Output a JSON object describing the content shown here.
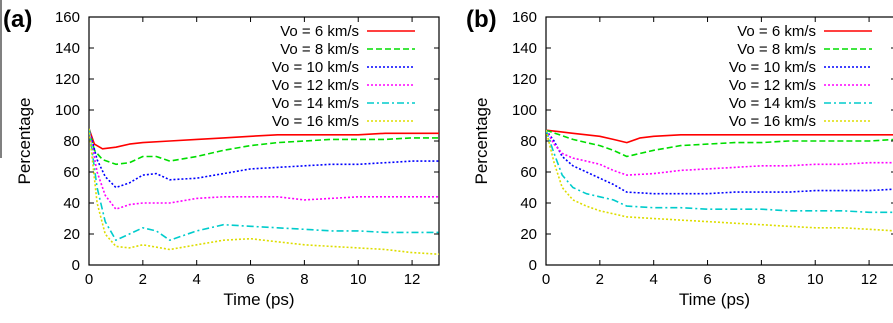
{
  "chart_data": [
    {
      "type": "line",
      "panel_label": "(a)",
      "xlabel": "Time (ps)",
      "ylabel": "Percentage",
      "xlim": [
        0,
        13
      ],
      "ylim": [
        0,
        160
      ],
      "xticks": [
        0,
        2,
        4,
        6,
        8,
        10,
        12
      ],
      "yticks": [
        0,
        20,
        40,
        60,
        80,
        100,
        120,
        140,
        160
      ],
      "grid": false,
      "legend_position": "top-right",
      "series": [
        {
          "name": "Vo = 6 km/s",
          "color": "#ff0000",
          "dash": "solid",
          "x": [
            0,
            0.2,
            0.5,
            1,
            1.5,
            2,
            3,
            4,
            5,
            6,
            7,
            8,
            9,
            10,
            11,
            12,
            13
          ],
          "y": [
            88,
            78,
            75,
            76,
            78,
            79,
            80,
            81,
            82,
            83,
            84,
            84,
            84,
            84,
            85,
            85,
            85
          ]
        },
        {
          "name": "Vo = 8 km/s",
          "color": "#00dd00",
          "dash": "dashed",
          "x": [
            0,
            0.2,
            0.5,
            1,
            1.5,
            2,
            2.5,
            3,
            4,
            5,
            6,
            7,
            8,
            9,
            10,
            11,
            12,
            13
          ],
          "y": [
            88,
            74,
            68,
            65,
            66,
            70,
            70,
            67,
            70,
            74,
            77,
            79,
            80,
            81,
            81,
            81,
            82,
            82
          ]
        },
        {
          "name": "Vo = 10 km/s",
          "color": "#0000ff",
          "dash": "dotted",
          "x": [
            0,
            0.3,
            0.6,
            1,
            1.5,
            2,
            2.5,
            3,
            4,
            5,
            6,
            7,
            8,
            9,
            10,
            11,
            12,
            13
          ],
          "y": [
            88,
            68,
            57,
            50,
            53,
            58,
            59,
            55,
            56,
            59,
            62,
            63,
            64,
            65,
            65,
            66,
            67,
            67
          ]
        },
        {
          "name": "Vo = 12 km/s",
          "color": "#ff00ff",
          "dash": "dotted",
          "x": [
            0,
            0.3,
            0.6,
            1,
            1.5,
            2,
            3,
            4,
            5,
            6,
            7,
            8,
            9,
            10,
            11,
            12,
            13
          ],
          "y": [
            88,
            60,
            45,
            36,
            39,
            40,
            40,
            43,
            44,
            44,
            44,
            42,
            43,
            44,
            44,
            44,
            44
          ]
        },
        {
          "name": "Vo = 14 km/s",
          "color": "#00cccc",
          "dash": "dashdot",
          "x": [
            0,
            0.3,
            0.6,
            1,
            1.5,
            2,
            2.5,
            3,
            4,
            5,
            6,
            7,
            8,
            9,
            10,
            11,
            12,
            13
          ],
          "y": [
            88,
            50,
            28,
            16,
            20,
            24,
            22,
            16,
            22,
            26,
            25,
            24,
            23,
            22,
            22,
            21,
            21,
            21
          ]
        },
        {
          "name": "Vo = 16 km/s",
          "color": "#dddd00",
          "dash": "dotted",
          "x": [
            0,
            0.3,
            0.6,
            1,
            1.5,
            2,
            3,
            4,
            5,
            6,
            7,
            8,
            9,
            10,
            11,
            12,
            13
          ],
          "y": [
            88,
            40,
            20,
            12,
            11,
            13,
            10,
            13,
            16,
            17,
            15,
            13,
            12,
            11,
            10,
            8,
            7
          ]
        }
      ]
    },
    {
      "type": "line",
      "panel_label": "(b)",
      "xlabel": "Time (ps)",
      "ylabel": "Percentage",
      "xlim": [
        0,
        13
      ],
      "ylim": [
        0,
        160
      ],
      "xticks": [
        0,
        2,
        4,
        6,
        8,
        10,
        12
      ],
      "yticks": [
        0,
        20,
        40,
        60,
        80,
        100,
        120,
        140,
        160
      ],
      "grid": false,
      "legend_position": "top-right",
      "series": [
        {
          "name": "Vo = 6 km/s",
          "color": "#ff0000",
          "dash": "solid",
          "x": [
            0,
            0.5,
            1,
            1.5,
            2,
            2.5,
            3,
            3.5,
            4,
            5,
            6,
            7,
            8,
            9,
            10,
            11,
            12,
            13
          ],
          "y": [
            87,
            86,
            85,
            84,
            83,
            81,
            79,
            82,
            83,
            84,
            84,
            84,
            84,
            84,
            84,
            84,
            84,
            84
          ]
        },
        {
          "name": "Vo = 8 km/s",
          "color": "#00dd00",
          "dash": "dashed",
          "x": [
            0,
            0.5,
            1,
            1.5,
            2,
            2.5,
            3,
            3.5,
            4,
            5,
            6,
            7,
            8,
            9,
            10,
            11,
            12,
            13
          ],
          "y": [
            87,
            84,
            81,
            79,
            77,
            74,
            70,
            72,
            74,
            77,
            78,
            79,
            79,
            80,
            80,
            80,
            80,
            81
          ]
        },
        {
          "name": "Vo = 10 km/s",
          "color": "#0000ff",
          "dash": "dotted",
          "x": [
            0,
            0.3,
            0.6,
            1,
            1.5,
            2,
            2.5,
            3,
            4,
            5,
            6,
            7,
            8,
            9,
            10,
            11,
            12,
            13
          ],
          "y": [
            87,
            80,
            70,
            64,
            60,
            56,
            52,
            47,
            46,
            46,
            46,
            47,
            47,
            47,
            48,
            48,
            48,
            49
          ]
        },
        {
          "name": "Vo = 12 km/s",
          "color": "#ff00ff",
          "dash": "dotted",
          "x": [
            0,
            0.3,
            0.6,
            1,
            1.5,
            2,
            2.5,
            3,
            4,
            5,
            6,
            7,
            8,
            9,
            10,
            11,
            12,
            13
          ],
          "y": [
            87,
            78,
            72,
            69,
            67,
            65,
            61,
            58,
            59,
            61,
            62,
            63,
            64,
            64,
            65,
            65,
            66,
            66
          ]
        },
        {
          "name": "Vo = 14 km/s",
          "color": "#00cccc",
          "dash": "dashdot",
          "x": [
            0,
            0.3,
            0.6,
            1,
            1.5,
            2,
            2.5,
            3,
            4,
            5,
            6,
            7,
            8,
            9,
            10,
            11,
            12,
            13
          ],
          "y": [
            87,
            72,
            58,
            50,
            46,
            44,
            42,
            38,
            37,
            37,
            36,
            36,
            36,
            35,
            35,
            35,
            34,
            34
          ]
        },
        {
          "name": "Vo = 16 km/s",
          "color": "#dddd00",
          "dash": "dotted",
          "x": [
            0,
            0.3,
            0.6,
            1,
            1.5,
            2,
            2.5,
            3,
            4,
            5,
            6,
            7,
            8,
            9,
            10,
            11,
            12,
            13
          ],
          "y": [
            87,
            66,
            50,
            42,
            38,
            35,
            33,
            31,
            30,
            29,
            28,
            27,
            26,
            25,
            24,
            24,
            23,
            22
          ]
        }
      ]
    }
  ]
}
